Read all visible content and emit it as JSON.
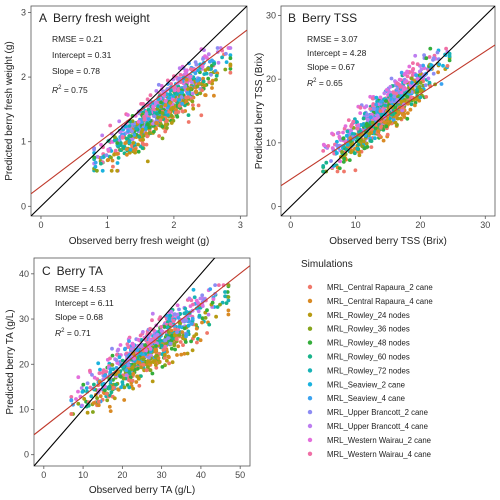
{
  "legend": {
    "title": "Simulations",
    "items": [
      {
        "name": "MRL_Central Rapaura_2 cane",
        "color": "#f0786a"
      },
      {
        "name": "MRL_Central Rapaura_4 cane",
        "color": "#d98a24"
      },
      {
        "name": "MRL_Rowley_24 nodes",
        "color": "#b79a12"
      },
      {
        "name": "MRL_Rowley_36 nodes",
        "color": "#86a51d"
      },
      {
        "name": "MRL_Rowley_48 nodes",
        "color": "#34ad3b"
      },
      {
        "name": "MRL_Rowley_60 nodes",
        "color": "#19b38a"
      },
      {
        "name": "MRL_Rowley_72 nodes",
        "color": "#18b2b6"
      },
      {
        "name": "MRL_Seaview_2 cane",
        "color": "#1ab2de"
      },
      {
        "name": "MRL_Seaview_4 cane",
        "color": "#3ba3f0"
      },
      {
        "name": "MRL_Upper Brancott_2 cane",
        "color": "#8d8cf3"
      },
      {
        "name": "MRL_Upper Brancott_4 cane",
        "color": "#bd7ef0"
      },
      {
        "name": "MRL_Western Wairau_2 cane",
        "color": "#e36fdc"
      },
      {
        "name": "MRL_Western Wairau_4 cane",
        "color": "#f06fa6"
      }
    ]
  },
  "chart_data": [
    {
      "type": "scatter",
      "panel_label": "A",
      "title": "Berry fresh weight",
      "xlabel": "Observed berry fresh weight (g)",
      "ylabel": "Predicted berry fresh weight (g)",
      "xlim": [
        -0.15,
        3.1
      ],
      "ylim": [
        -0.15,
        3.1
      ],
      "xticks": [
        0,
        1,
        2,
        3
      ],
      "yticks": [
        0,
        1,
        2,
        3
      ],
      "stats": {
        "rmse": "RMSE = 0.21",
        "intercept": "Intercept = 0.31",
        "slope": "Slope = 0.78",
        "r2_prefix": "R",
        "r2_value": " = 0.75"
      },
      "fit": {
        "intercept": 0.31,
        "slope": 0.78
      },
      "identity_line": true,
      "point_cloud": {
        "x_range": [
          0.8,
          2.85
        ],
        "y_range": [
          0.55,
          2.45
        ],
        "n_points": 850
      }
    },
    {
      "type": "scatter",
      "panel_label": "B",
      "title": "Berry TSS",
      "xlabel": "Observed berry TSS (Brix)",
      "ylabel": "Predicted berry TSS (Brix)",
      "xlim": [
        -1.5,
        31.5
      ],
      "ylim": [
        -1.5,
        31.5
      ],
      "xticks": [
        0,
        10,
        20,
        30
      ],
      "yticks": [
        0,
        10,
        20,
        30
      ],
      "stats": {
        "rmse": "RMSE = 3.07",
        "intercept": "Intercept = 4.28",
        "slope": "Slope = 0.67",
        "r2_prefix": "R",
        "r2_value": " = 0.65"
      },
      "fit": {
        "intercept": 4.28,
        "slope": 0.67
      },
      "identity_line": true,
      "point_cloud": {
        "x_range": [
          5,
          24.5
        ],
        "y_range": [
          5.5,
          24.8
        ],
        "n_points": 850
      }
    },
    {
      "type": "scatter",
      "panel_label": "C",
      "title": "Berry TA",
      "xlabel": "Observed berry TA (g/L)",
      "ylabel": "Predicted berry TA (g/L)",
      "xlim": [
        -2.5,
        52.5
      ],
      "ylim": [
        -2.5,
        43.5
      ],
      "xticks": [
        0,
        10,
        20,
        30,
        40,
        50
      ],
      "yticks": [
        0,
        10,
        20,
        30,
        40
      ],
      "stats": {
        "rmse": "RMSE = 4.53",
        "intercept": "Intercept = 6.11",
        "slope": "Slope = 0.68",
        "r2_prefix": "R",
        "r2_value": " = 0.71"
      },
      "fit": {
        "intercept": 6.11,
        "slope": 0.68
      },
      "identity_line": true,
      "point_cloud": {
        "x_range": [
          7,
          47
        ],
        "y_range": [
          9,
          37.5
        ],
        "n_points": 850
      }
    }
  ]
}
